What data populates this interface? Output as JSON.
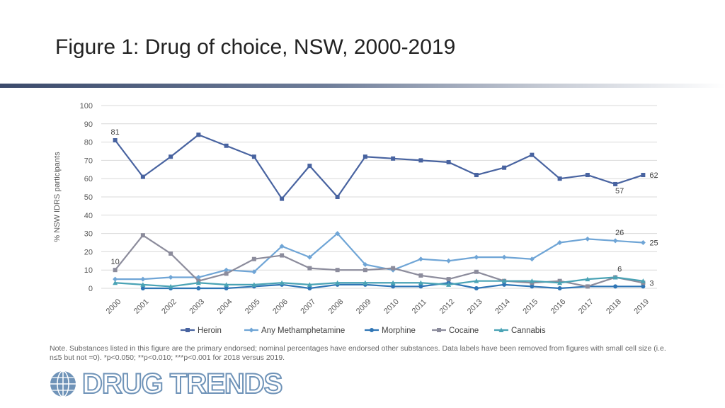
{
  "title": "Figure 1: Drug of choice, NSW, 2000-2019",
  "note": "Note. Substances listed in this figure are the primary endorsed; nominal percentages have endorsed other substances. Data labels have been removed from figures with small cell size (i.e. n≤5 but not =0). *p<0.050; **p<0.010; ***p<0.001 for 2018 versus 2019.",
  "logo": {
    "text": "DRUG TRENDS",
    "icon": "globe-icon"
  },
  "chart_data": {
    "type": "line",
    "title": "",
    "xlabel": "",
    "ylabel": "% NSW IDRS participants",
    "ylim": [
      0,
      100
    ],
    "yticks": [
      "0",
      "10",
      "20",
      "30",
      "40",
      "50",
      "60",
      "70",
      "80",
      "90",
      "100"
    ],
    "x": [
      "2000",
      "2001",
      "2002",
      "2003",
      "2004",
      "2005",
      "2006",
      "2007",
      "2008",
      "2009",
      "2010",
      "2011",
      "2012",
      "2013",
      "2014",
      "2015",
      "2016",
      "2017",
      "2018",
      "2019"
    ],
    "grid": true,
    "legend_position": "bottom",
    "series": [
      {
        "name": "Heroin",
        "color": "#4863a0",
        "marker": "square",
        "values": [
          81,
          61,
          72,
          84,
          78,
          72,
          49,
          67,
          50,
          72,
          71,
          70,
          69,
          62,
          66,
          73,
          60,
          62,
          57,
          62
        ]
      },
      {
        "name": "Any Methamphetamine",
        "color": "#6fa5d6",
        "marker": "diamond",
        "values": [
          5,
          5,
          6,
          6,
          10,
          9,
          23,
          17,
          30,
          13,
          10,
          16,
          15,
          17,
          17,
          16,
          25,
          27,
          26,
          25
        ]
      },
      {
        "name": "Morphine",
        "color": "#2f75b5",
        "marker": "circle",
        "values": [
          null,
          0,
          0,
          0,
          0,
          1,
          2,
          0,
          2,
          2,
          1,
          1,
          3,
          0,
          2,
          1,
          0,
          1,
          1,
          1
        ]
      },
      {
        "name": "Cocaine",
        "color": "#8c8c9c",
        "marker": "square",
        "values": [
          10,
          29,
          19,
          4,
          8,
          16,
          18,
          11,
          10,
          10,
          11,
          7,
          5,
          9,
          4,
          3,
          4,
          1,
          6,
          3
        ]
      },
      {
        "name": "Cannabis",
        "color": "#4aa3b5",
        "marker": "triangle",
        "values": [
          3,
          2,
          1,
          3,
          2,
          2,
          3,
          2,
          3,
          3,
          3,
          3,
          2,
          4,
          4,
          4,
          3,
          5,
          6,
          4
        ]
      }
    ],
    "data_labels": [
      {
        "series": "Heroin",
        "x": "2000",
        "text": "81"
      },
      {
        "series": "Heroin",
        "x": "2018",
        "text": "57"
      },
      {
        "series": "Heroin",
        "x": "2019",
        "text": "62"
      },
      {
        "series": "Any Methamphetamine",
        "x": "2018",
        "text": "26"
      },
      {
        "series": "Any Methamphetamine",
        "x": "2019",
        "text": "25"
      },
      {
        "series": "Cocaine",
        "x": "2000",
        "text": "10"
      },
      {
        "series": "Cocaine",
        "x": "2018",
        "text": "6"
      },
      {
        "series": "Cocaine",
        "x": "2019",
        "text": "3"
      }
    ]
  }
}
